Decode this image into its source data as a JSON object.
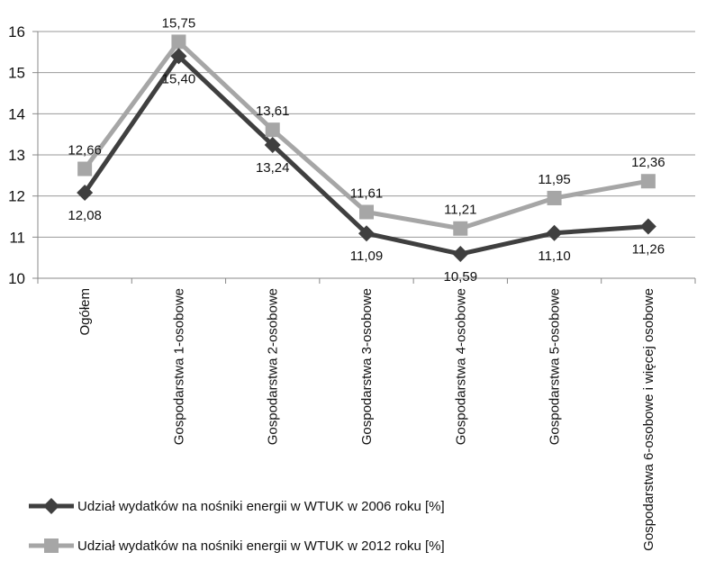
{
  "chart_data": {
    "type": "line",
    "title": "",
    "xlabel": "",
    "ylabel": "",
    "ylim": [
      10,
      16
    ],
    "yticks": [
      10,
      11,
      12,
      13,
      14,
      15,
      16
    ],
    "grid": true,
    "legend_position": "bottom-left",
    "categories": [
      "Ogółem",
      "Gospodarstwa 1-osobowe",
      "Gospodarstwa 2-osobowe",
      "Gospodarstwa 3-osobowe",
      "Gospodarstwa 4-osobowe",
      "Gospodarstwa 5-osobowe",
      "Gospodarstwa 6-osobowe i więcej osobowe"
    ],
    "series": [
      {
        "name": "Udział wydatków na nośniki energii w WTUK w 2006 roku [%]",
        "values": [
          12.08,
          15.4,
          13.24,
          11.09,
          10.59,
          11.1,
          11.26
        ],
        "labels": [
          "12,08",
          "15,40",
          "13,24",
          "11,09",
          "10,59",
          "11,10",
          "11,26"
        ],
        "color": "#3f3f3f",
        "marker": "diamond"
      },
      {
        "name": "Udział wydatków na nośniki energii w WTUK w 2012 roku [%]",
        "values": [
          12.66,
          15.75,
          13.61,
          11.61,
          11.21,
          11.95,
          12.36
        ],
        "labels": [
          "12,66",
          "15,75",
          "13,61",
          "11,61",
          "11,21",
          "11,95",
          "12,36"
        ],
        "color": "#a6a6a6",
        "marker": "square"
      }
    ]
  }
}
